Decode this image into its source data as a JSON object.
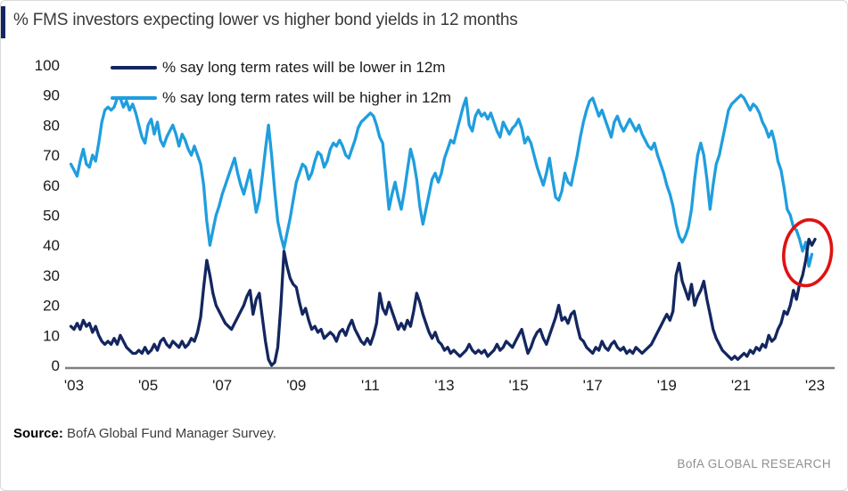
{
  "header": {
    "title": "% FMS investors expecting lower vs higher bond yields in 12 months",
    "accent_color": "#13265F"
  },
  "footer": {
    "source_label": "Source:",
    "source_text": " BofA Global Fund Manager Survey.",
    "brand": "BofA GLOBAL RESEARCH"
  },
  "chart_data": {
    "type": "line",
    "title": "% FMS investors expecting lower vs higher bond yields in 12 months",
    "grid": "off",
    "legend_position": "top-left inside plot",
    "axis_line_color": "#7f7f7f",
    "y_axis": {
      "range": [
        0,
        100
      ],
      "ticks": [
        0,
        10,
        20,
        30,
        40,
        50,
        60,
        70,
        80,
        90,
        100
      ]
    },
    "x_axis": {
      "range_years": [
        2002.9,
        2023.2
      ],
      "tick_labels": [
        "'03",
        "'05",
        "'07",
        "'09",
        "'11",
        "'13",
        "'15",
        "'17",
        "'19",
        "'21",
        "'23"
      ],
      "tick_years": [
        2003,
        2005,
        2007,
        2009,
        2011,
        2013,
        2015,
        2017,
        2019,
        2021,
        2023
      ]
    },
    "annotation": {
      "shape": "ellipse",
      "color": "#E01212",
      "x_year": 2022.8,
      "y_value": 37.5,
      "rx_years": 0.64,
      "ry_units": 11,
      "rotation_deg": 8
    },
    "series": [
      {
        "name": "% say long term rates will be lower in 12m",
        "color": "#13265F",
        "x_start": 2002.9167,
        "x_step_years": 0.083333,
        "values": [
          13,
          12,
          14,
          12,
          15,
          13,
          14,
          11,
          13,
          10,
          8,
          7,
          8,
          7,
          9,
          7,
          10,
          8,
          6,
          5,
          4,
          4,
          5,
          4,
          6,
          4,
          5,
          7,
          5,
          8,
          9,
          7,
          6,
          8,
          7,
          6,
          8,
          6,
          7,
          9,
          8,
          11,
          16,
          26,
          35,
          30,
          24,
          20,
          18,
          16,
          14,
          13,
          12,
          14,
          16,
          18,
          20,
          23,
          25,
          17,
          22,
          24,
          16,
          8,
          2,
          0,
          1,
          6,
          20,
          38,
          33,
          29,
          27,
          26,
          21,
          17,
          19,
          15,
          12,
          13,
          11,
          12,
          9,
          10,
          11,
          10,
          8,
          11,
          12,
          10,
          13,
          15,
          12,
          10,
          8,
          7,
          9,
          7,
          10,
          14,
          24,
          19,
          17,
          21,
          18,
          15,
          12,
          14,
          12,
          15,
          13,
          18,
          24,
          21,
          17,
          14,
          11,
          9,
          11,
          8,
          7,
          5,
          6,
          4,
          5,
          4,
          3,
          4,
          5,
          7,
          5,
          4,
          5,
          4,
          5,
          3,
          4,
          5,
          7,
          5,
          6,
          8,
          7,
          6,
          8,
          10,
          12,
          8,
          4,
          6,
          9,
          11,
          12,
          9,
          7,
          10,
          13,
          16,
          20,
          15,
          16,
          14,
          17,
          18,
          13,
          9,
          8,
          6,
          5,
          4,
          6,
          5,
          8,
          6,
          5,
          7,
          8,
          6,
          5,
          6,
          4,
          5,
          4,
          6,
          5,
          4,
          5,
          6,
          7,
          9,
          11,
          13,
          15,
          17,
          15,
          18,
          30,
          34,
          28,
          25,
          22,
          27,
          20,
          23,
          25,
          28,
          22,
          17,
          12,
          9,
          7,
          5,
          4,
          3,
          2,
          3,
          2,
          3,
          4,
          3,
          5,
          4,
          6,
          5,
          7,
          6,
          10,
          8,
          9,
          12,
          14,
          18,
          17,
          20,
          25,
          22,
          27,
          30,
          35,
          42,
          40,
          42
        ]
      },
      {
        "name": "% say long term rates will be higher in 12m",
        "color": "#1F9EDE",
        "x_start": 2002.9167,
        "x_step_years": 0.083333,
        "values": [
          67,
          65,
          63,
          68,
          72,
          67,
          66,
          70,
          68,
          74,
          81,
          85,
          86,
          85,
          86,
          89,
          89,
          86,
          88,
          85,
          87,
          84,
          80,
          76,
          74,
          80,
          82,
          77,
          81,
          75,
          73,
          76,
          78,
          80,
          77,
          73,
          77,
          75,
          72,
          70,
          73,
          70,
          67,
          60,
          48,
          40,
          45,
          50,
          53,
          57,
          60,
          63,
          66,
          69,
          64,
          60,
          57,
          61,
          65,
          58,
          51,
          55,
          63,
          72,
          80,
          70,
          58,
          48,
          43,
          39,
          44,
          49,
          55,
          61,
          64,
          67,
          66,
          62,
          64,
          68,
          71,
          70,
          66,
          68,
          72,
          74,
          73,
          75,
          73,
          70,
          69,
          72,
          75,
          79,
          81,
          82,
          83,
          84,
          83,
          80,
          76,
          74,
          63,
          52,
          57,
          61,
          56,
          52,
          58,
          65,
          72,
          68,
          62,
          53,
          47,
          52,
          57,
          62,
          64,
          61,
          64,
          69,
          72,
          75,
          74,
          78,
          82,
          86,
          89,
          80,
          78,
          83,
          85,
          83,
          84,
          82,
          84,
          81,
          78,
          76,
          81,
          79,
          77,
          79,
          80,
          82,
          79,
          74,
          76,
          74,
          70,
          66,
          63,
          60,
          64,
          69,
          62,
          56,
          55,
          58,
          64,
          61,
          60,
          65,
          70,
          76,
          81,
          85,
          88,
          89,
          86,
          83,
          85,
          82,
          79,
          76,
          81,
          83,
          80,
          78,
          80,
          82,
          80,
          78,
          80,
          77,
          75,
          73,
          72,
          74,
          70,
          67,
          64,
          60,
          57,
          53,
          47,
          43,
          41,
          43,
          46,
          52,
          62,
          70,
          74,
          70,
          62,
          52,
          60,
          67,
          70,
          75,
          80,
          85,
          87,
          88,
          89,
          90,
          89,
          87,
          85,
          87,
          86,
          84,
          81,
          79,
          76,
          78,
          74,
          68,
          65,
          59,
          52,
          50,
          46,
          45,
          42,
          38,
          41,
          33,
          37
        ]
      }
    ]
  }
}
